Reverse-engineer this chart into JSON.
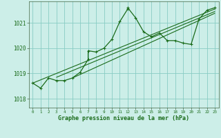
{
  "bg_color": "#cceee8",
  "grid_color": "#88ccC4",
  "line_color": "#1a6b1a",
  "xlabel": "Graphe pression niveau de la mer (hPa)",
  "xlim": [
    -0.5,
    23.5
  ],
  "ylim": [
    1017.65,
    1021.85
  ],
  "yticks": [
    1018,
    1019,
    1020,
    1021
  ],
  "xticks": [
    0,
    1,
    2,
    3,
    4,
    5,
    6,
    7,
    8,
    9,
    10,
    11,
    12,
    13,
    14,
    15,
    16,
    17,
    18,
    19,
    20,
    21,
    22,
    23
  ],
  "series": [
    [
      0,
      1018.62
    ],
    [
      1,
      1018.42
    ],
    [
      2,
      1018.82
    ],
    [
      3,
      1018.72
    ],
    [
      4,
      1018.72
    ],
    [
      5,
      1018.82
    ],
    [
      6,
      1019.05
    ],
    [
      7,
      1019.55
    ],
    [
      7,
      1019.9
    ],
    [
      8,
      1019.85
    ],
    [
      9,
      1020.0
    ],
    [
      10,
      1020.35
    ],
    [
      11,
      1021.05
    ],
    [
      12,
      1021.55
    ],
    [
      12,
      1021.6
    ],
    [
      13,
      1021.2
    ],
    [
      14,
      1020.65
    ],
    [
      15,
      1020.45
    ],
    [
      16,
      1020.6
    ],
    [
      17,
      1020.3
    ],
    [
      18,
      1020.3
    ],
    [
      19,
      1020.2
    ],
    [
      20,
      1020.15
    ],
    [
      21,
      1021.15
    ],
    [
      22,
      1021.5
    ],
    [
      23,
      1021.6
    ]
  ],
  "lines": [
    [
      [
        0,
        1018.62
      ],
      [
        23,
        1021.55
      ]
    ],
    [
      [
        3,
        1018.85
      ],
      [
        23,
        1021.45
      ]
    ],
    [
      [
        5,
        1018.82
      ],
      [
        23,
        1021.38
      ]
    ]
  ]
}
